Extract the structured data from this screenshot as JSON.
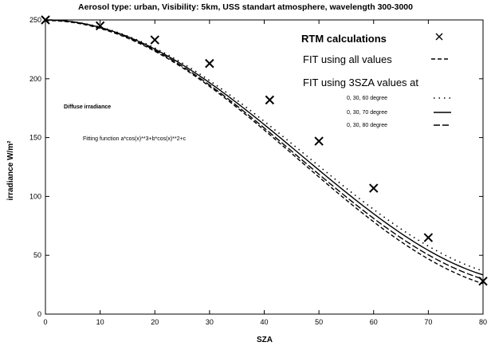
{
  "chart_data": {
    "type": "line",
    "title": "Aerosol type: urban, Visibility: 5km, USS standart atmosphere, wavelength 300-3000",
    "xlabel": "SZA",
    "ylabel": "irradiance W/m²",
    "xlim": [
      0,
      80
    ],
    "ylim": [
      0,
      250
    ],
    "x_ticks": [
      0,
      10,
      20,
      30,
      40,
      50,
      60,
      70,
      80
    ],
    "y_ticks": [
      0,
      50,
      100,
      150,
      200,
      250
    ],
    "grid": false,
    "legend_placement": "top-right",
    "annotations": [
      "Diffuse irradiance",
      "Fitting function a*cos(x)**3+b*cos(x)**2+c"
    ],
    "legend": {
      "rtm_label": "RTM calculations",
      "fit_all_label": "FIT using all values",
      "fit_3sza_header": "FIT using 3SZA values at",
      "fit_60_label": "0, 30, 60 degree",
      "fit_70_label": "0, 30, 70 degree",
      "fit_80_label": "0, 30, 80 degree"
    },
    "rtm_points": {
      "x": [
        0,
        10,
        20,
        30,
        41,
        50,
        60,
        70,
        80
      ],
      "y": [
        250,
        245,
        233,
        213,
        182,
        147,
        107,
        65,
        28
      ]
    },
    "series": [
      {
        "name": "FIT using all values",
        "style": "dashed",
        "coef": {
          "a": -17.5,
          "b": 248.5,
          "c": 18.5
        }
      },
      {
        "name": "0, 30, 60 degree",
        "style": "dotted",
        "coef": {
          "a": -37.16,
          "b": 258.07,
          "c": 29.09
        }
      },
      {
        "name": "0, 30, 70 degree",
        "style": "solid",
        "coef": {
          "a": -26.54,
          "b": 250.64,
          "c": 25.9
        }
      },
      {
        "name": "0, 30, 80 degree",
        "style": "longdash",
        "coef": {
          "a": -15.47,
          "b": 242.9,
          "c": 22.57
        }
      }
    ]
  }
}
